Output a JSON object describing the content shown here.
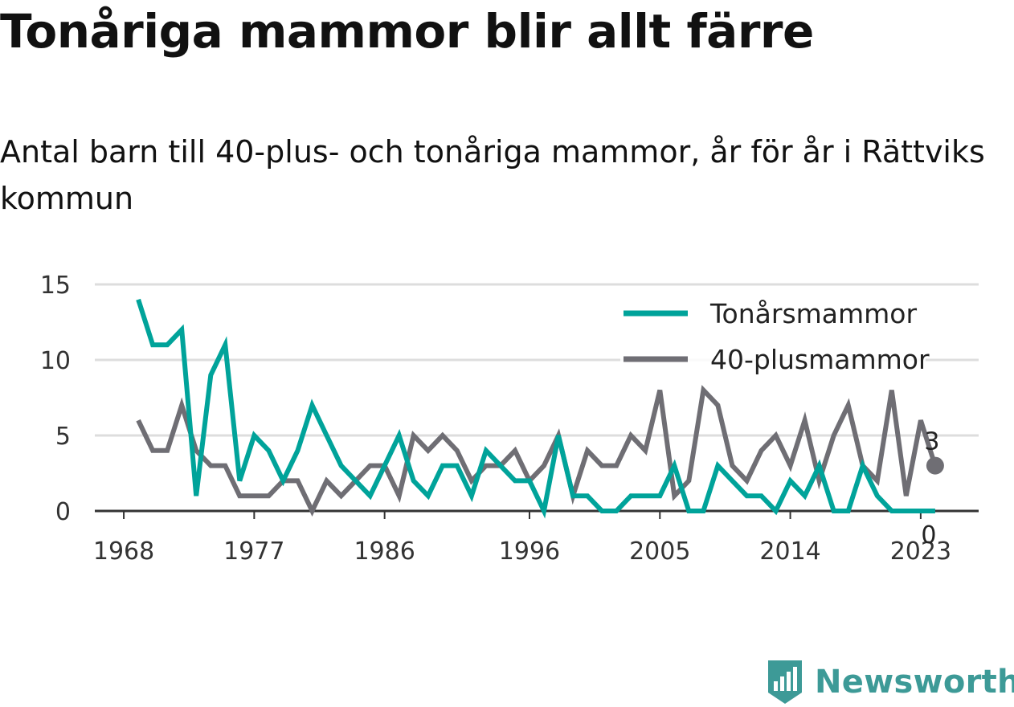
{
  "chart_data": {
    "type": "line",
    "title": "Tonåriga mammor blir allt färre",
    "subtitle": "Antal barn till 40-plus- och tonåriga mammor, år för år i Rättviks kommun",
    "xlabel": "",
    "ylabel": "",
    "xlim": [
      1966,
      2027
    ],
    "ylim": [
      0,
      15
    ],
    "x_ticks": [
      1968,
      1977,
      1986,
      1996,
      2005,
      2014,
      2023
    ],
    "y_ticks": [
      0,
      5,
      10,
      15
    ],
    "grid": true,
    "legend_position": "top-right",
    "x": [
      1969,
      1970,
      1971,
      1972,
      1973,
      1974,
      1975,
      1976,
      1977,
      1978,
      1979,
      1980,
      1981,
      1982,
      1983,
      1984,
      1985,
      1986,
      1987,
      1988,
      1989,
      1990,
      1991,
      1992,
      1993,
      1994,
      1995,
      1996,
      1997,
      1998,
      1999,
      2000,
      2001,
      2002,
      2003,
      2004,
      2005,
      2006,
      2007,
      2008,
      2009,
      2010,
      2011,
      2012,
      2013,
      2014,
      2015,
      2016,
      2017,
      2018,
      2019,
      2020,
      2021,
      2022,
      2023,
      2024
    ],
    "series": [
      {
        "name": "Tonårsmammor",
        "color": "#00a39a",
        "values": [
          14,
          11,
          11,
          12,
          1,
          9,
          11,
          2,
          5,
          4,
          2,
          4,
          7,
          5,
          3,
          2,
          1,
          3,
          5,
          2,
          1,
          3,
          3,
          1,
          4,
          3,
          2,
          2,
          0,
          5,
          1,
          1,
          0,
          0,
          1,
          1,
          1,
          3,
          0,
          0,
          3,
          2,
          1,
          1,
          0,
          2,
          1,
          3,
          0,
          0,
          3,
          1,
          0,
          0,
          0,
          0
        ],
        "end_label": "0"
      },
      {
        "name": "40-plusmammor",
        "color": "#6f6e74",
        "values": [
          6,
          4,
          4,
          7,
          4,
          3,
          3,
          1,
          1,
          1,
          2,
          2,
          0,
          2,
          1,
          2,
          3,
          3,
          1,
          5,
          4,
          5,
          4,
          2,
          3,
          3,
          4,
          2,
          3,
          5,
          1,
          4,
          3,
          3,
          5,
          4,
          8,
          1,
          2,
          8,
          7,
          3,
          2,
          4,
          5,
          3,
          6,
          2,
          5,
          7,
          3,
          2,
          8,
          1,
          6,
          3
        ],
        "end_label": "3"
      }
    ]
  },
  "branding": {
    "logo_icon": "bar-chart-badge-icon",
    "name": "Newsworthy",
    "color": "#3d9a97"
  }
}
